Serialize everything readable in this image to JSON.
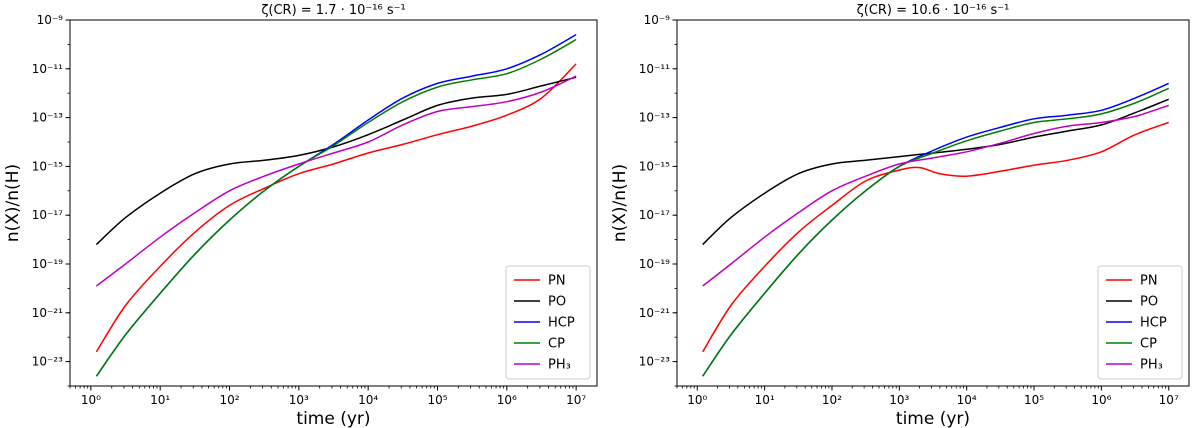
{
  "chart_data": [
    {
      "type": "line",
      "title": "ζ(CR) = 1.7 · 10⁻¹⁶ s⁻¹",
      "xlabel": "time (yr)",
      "ylabel": "n(X)/n(H)",
      "xscale": "log",
      "yscale": "log",
      "xlim": [
        0.5,
        20000000.0
      ],
      "ylim": [
        1e-24,
        1e-09
      ],
      "x_ticks": [
        {
          "v": 1,
          "label": "10⁰"
        },
        {
          "v": 10,
          "label": "10¹"
        },
        {
          "v": 100,
          "label": "10²"
        },
        {
          "v": 1000,
          "label": "10³"
        },
        {
          "v": 10000,
          "label": "10⁴"
        },
        {
          "v": 100000,
          "label": "10⁵"
        },
        {
          "v": 1000000,
          "label": "10⁶"
        },
        {
          "v": 10000000,
          "label": "10⁷"
        }
      ],
      "y_ticks": [
        {
          "v": -23,
          "label": "10⁻²³"
        },
        {
          "v": -21,
          "label": "10⁻²¹"
        },
        {
          "v": -19,
          "label": "10⁻¹⁹"
        },
        {
          "v": -17,
          "label": "10⁻¹⁷"
        },
        {
          "v": -15,
          "label": "10⁻¹⁵"
        },
        {
          "v": -13,
          "label": "10⁻¹³"
        },
        {
          "v": -11,
          "label": "10⁻¹¹"
        },
        {
          "v": -9,
          "label": "10⁻⁹"
        }
      ],
      "legend_position": "lower-right",
      "series": [
        {
          "name": "PN",
          "color": "#ff0000",
          "logx": [
            0.08,
            0.5,
            1,
            1.5,
            2,
            2.5,
            3,
            3.5,
            4,
            4.5,
            5,
            5.5,
            6,
            6.5,
            7
          ],
          "logy": [
            -22.6,
            -20.7,
            -19.1,
            -17.7,
            -16.6,
            -15.9,
            -15.3,
            -14.9,
            -14.45,
            -14.1,
            -13.7,
            -13.35,
            -12.9,
            -12.2,
            -10.8
          ]
        },
        {
          "name": "PO",
          "color": "#000000",
          "logx": [
            0.08,
            0.5,
            1,
            1.5,
            2,
            2.5,
            3,
            3.5,
            4,
            4.5,
            5,
            5.5,
            6,
            6.5,
            7
          ],
          "logy": [
            -18.2,
            -17.1,
            -16.1,
            -15.3,
            -14.9,
            -14.75,
            -14.55,
            -14.2,
            -13.7,
            -13.1,
            -12.5,
            -12.2,
            -12.05,
            -11.7,
            -11.35
          ]
        },
        {
          "name": "HCP",
          "color": "#0000ff",
          "logx": [
            0.08,
            0.5,
            1,
            1.5,
            2,
            2.5,
            3,
            3.5,
            4,
            4.5,
            5,
            5.5,
            6,
            6.5,
            7
          ],
          "logy": [
            -23.6,
            -21.9,
            -20.2,
            -18.6,
            -17.2,
            -16.0,
            -15.0,
            -14.1,
            -13.1,
            -12.2,
            -11.6,
            -11.3,
            -11.0,
            -10.4,
            -9.6
          ]
        },
        {
          "name": "CP",
          "color": "#008000",
          "logx": [
            0.08,
            0.5,
            1,
            1.5,
            2,
            2.5,
            3,
            3.5,
            4,
            4.5,
            5,
            5.5,
            6,
            6.5,
            7
          ],
          "logy": [
            -23.6,
            -21.9,
            -20.2,
            -18.6,
            -17.2,
            -16.0,
            -15.0,
            -14.15,
            -13.2,
            -12.35,
            -11.75,
            -11.45,
            -11.2,
            -10.6,
            -9.8
          ]
        },
        {
          "name": "PH₃",
          "color": "#c000c0",
          "logx": [
            0.08,
            0.5,
            1,
            1.5,
            2,
            2.5,
            3,
            3.5,
            4,
            4.5,
            5,
            5.5,
            6,
            6.5,
            7
          ],
          "logy": [
            -19.9,
            -19.0,
            -17.9,
            -16.9,
            -16.0,
            -15.4,
            -14.9,
            -14.45,
            -14.0,
            -13.3,
            -12.75,
            -12.55,
            -12.35,
            -11.95,
            -11.3
          ]
        }
      ]
    },
    {
      "type": "line",
      "title": "ζ(CR) = 10.6 · 10⁻¹⁶ s⁻¹",
      "xlabel": "time (yr)",
      "ylabel": "n(X)/n(H)",
      "xscale": "log",
      "yscale": "log",
      "xlim": [
        0.5,
        20000000.0
      ],
      "ylim": [
        1e-24,
        1e-09
      ],
      "x_ticks": [
        {
          "v": 1,
          "label": "10⁰"
        },
        {
          "v": 10,
          "label": "10¹"
        },
        {
          "v": 100,
          "label": "10²"
        },
        {
          "v": 1000,
          "label": "10³"
        },
        {
          "v": 10000,
          "label": "10⁴"
        },
        {
          "v": 100000,
          "label": "10⁵"
        },
        {
          "v": 1000000,
          "label": "10⁶"
        },
        {
          "v": 10000000,
          "label": "10⁷"
        }
      ],
      "y_ticks": [
        {
          "v": -23,
          "label": "10⁻²³"
        },
        {
          "v": -21,
          "label": "10⁻²¹"
        },
        {
          "v": -19,
          "label": "10⁻¹⁹"
        },
        {
          "v": -17,
          "label": "10⁻¹⁷"
        },
        {
          "v": -15,
          "label": "10⁻¹⁵"
        },
        {
          "v": -13,
          "label": "10⁻¹³"
        },
        {
          "v": -11,
          "label": "10⁻¹¹"
        },
        {
          "v": -9,
          "label": "10⁻⁹"
        }
      ],
      "legend_position": "lower-right",
      "series": [
        {
          "name": "PN",
          "color": "#ff0000",
          "logx": [
            0.08,
            0.5,
            1,
            1.5,
            2,
            2.5,
            3,
            3.3,
            3.6,
            4,
            4.5,
            5,
            5.5,
            6,
            6.5,
            7
          ],
          "logy": [
            -22.6,
            -20.7,
            -19.1,
            -17.7,
            -16.6,
            -15.6,
            -15.15,
            -15.05,
            -15.3,
            -15.4,
            -15.2,
            -14.95,
            -14.75,
            -14.4,
            -13.7,
            -13.2
          ]
        },
        {
          "name": "PO",
          "color": "#000000",
          "logx": [
            0.08,
            0.5,
            1,
            1.5,
            2,
            2.5,
            3,
            3.5,
            4,
            4.5,
            5,
            5.5,
            6,
            6.5,
            7
          ],
          "logy": [
            -18.2,
            -17.1,
            -16.1,
            -15.3,
            -14.9,
            -14.75,
            -14.6,
            -14.45,
            -14.3,
            -14.1,
            -13.8,
            -13.55,
            -13.3,
            -12.8,
            -12.25
          ]
        },
        {
          "name": "HCP",
          "color": "#0000ff",
          "logx": [
            0.08,
            0.5,
            1,
            1.5,
            2,
            2.5,
            3,
            3.5,
            4,
            4.5,
            5,
            5.5,
            6,
            6.5,
            7
          ],
          "logy": [
            -23.6,
            -21.9,
            -20.2,
            -18.6,
            -17.2,
            -16.0,
            -15.0,
            -14.35,
            -13.8,
            -13.4,
            -13.05,
            -12.9,
            -12.7,
            -12.2,
            -11.6
          ]
        },
        {
          "name": "CP",
          "color": "#008000",
          "logx": [
            0.08,
            0.5,
            1,
            1.5,
            2,
            2.5,
            3,
            3.5,
            4,
            4.5,
            5,
            5.5,
            6,
            6.5,
            7
          ],
          "logy": [
            -23.6,
            -21.9,
            -20.2,
            -18.6,
            -17.2,
            -16.0,
            -15.0,
            -14.45,
            -13.95,
            -13.55,
            -13.2,
            -13.05,
            -12.85,
            -12.4,
            -11.8
          ]
        },
        {
          "name": "PH₃",
          "color": "#c000c0",
          "logx": [
            0.08,
            0.5,
            1,
            1.5,
            2,
            2.5,
            3,
            3.5,
            4,
            4.5,
            5,
            5.5,
            6,
            6.5,
            7
          ],
          "logy": [
            -19.9,
            -19.0,
            -17.9,
            -16.9,
            -16.0,
            -15.4,
            -14.9,
            -14.65,
            -14.4,
            -14.05,
            -13.65,
            -13.35,
            -13.2,
            -12.95,
            -12.5
          ]
        }
      ]
    }
  ]
}
